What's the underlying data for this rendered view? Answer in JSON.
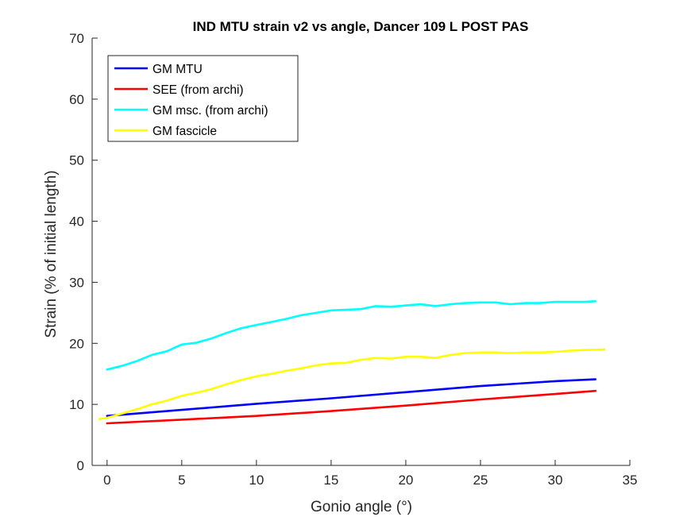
{
  "chart_data": {
    "type": "line",
    "title": "IND MTU strain v2 vs angle, Dancer 109 L POST PAS",
    "xlabel": "Gonio angle (°)",
    "ylabel": "Strain (% of initial length)",
    "xlim": [
      -1,
      35
    ],
    "ylim": [
      0,
      70
    ],
    "xticks": [
      0,
      5,
      10,
      15,
      20,
      25,
      30,
      35
    ],
    "yticks": [
      0,
      10,
      20,
      30,
      40,
      50,
      60,
      70
    ],
    "xtick_labels": [
      "0",
      "5",
      "10",
      "15",
      "20",
      "25",
      "30",
      "35"
    ],
    "ytick_labels": [
      "0",
      "10",
      "20",
      "30",
      "40",
      "50",
      "60",
      "70"
    ],
    "grid": false,
    "legend_position": "top-left",
    "series": [
      {
        "name": "GM MTU",
        "color": "#0000ff",
        "x": [
          0,
          5,
          10,
          15,
          20,
          25,
          30,
          32.7
        ],
        "y": [
          8.1,
          9.1,
          10.1,
          11.0,
          12.0,
          13.0,
          13.8,
          14.1
        ]
      },
      {
        "name": "SEE (from archi)",
        "color": "#ff0000",
        "x": [
          0,
          5,
          10,
          15,
          20,
          25,
          30,
          32.7
        ],
        "y": [
          6.9,
          7.5,
          8.1,
          8.9,
          9.8,
          10.8,
          11.7,
          12.2
        ]
      },
      {
        "name": "GM msc. (from archi)",
        "color": "#00ffff",
        "x": [
          0,
          1,
          2,
          3,
          4,
          5,
          6,
          7,
          8,
          9,
          10,
          11,
          12,
          13,
          14,
          15,
          16,
          17,
          18,
          19,
          20,
          21,
          22,
          23,
          24,
          25,
          26,
          27,
          28,
          29,
          30,
          31,
          32,
          32.7
        ],
        "y": [
          15.7,
          16.3,
          17.1,
          18.1,
          18.7,
          19.8,
          20.1,
          20.8,
          21.7,
          22.5,
          23.0,
          23.5,
          24.0,
          24.6,
          25.0,
          25.4,
          25.5,
          25.6,
          26.1,
          26.0,
          26.2,
          26.4,
          26.1,
          26.4,
          26.6,
          26.7,
          26.7,
          26.4,
          26.6,
          26.6,
          26.8,
          26.8,
          26.8,
          26.9
        ]
      },
      {
        "name": "GM fascicle",
        "color": "#ffff00",
        "x": [
          -0.5,
          0,
          1,
          2,
          3,
          4,
          5,
          6,
          7,
          8,
          9,
          10,
          11,
          12,
          13,
          14,
          15,
          16,
          17,
          18,
          19,
          20,
          21,
          22,
          23,
          24,
          25,
          26,
          27,
          28,
          29,
          30,
          31,
          32,
          33.3
        ],
        "y": [
          7.6,
          7.8,
          8.5,
          9.2,
          10.0,
          10.6,
          11.4,
          11.9,
          12.5,
          13.3,
          14.0,
          14.6,
          15.0,
          15.5,
          15.9,
          16.4,
          16.7,
          16.8,
          17.3,
          17.6,
          17.5,
          17.8,
          17.8,
          17.6,
          18.1,
          18.4,
          18.5,
          18.5,
          18.4,
          18.5,
          18.5,
          18.6,
          18.8,
          18.9,
          19.0
        ]
      }
    ]
  }
}
